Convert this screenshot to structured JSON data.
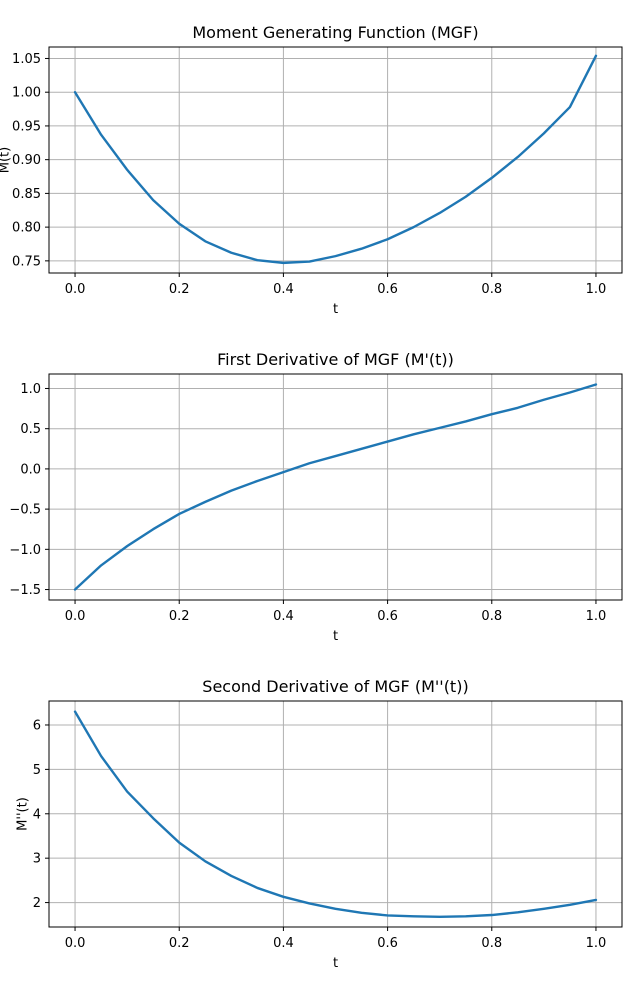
{
  "chart_data": [
    {
      "type": "line",
      "title": "Moment Generating Function (MGF)",
      "xlabel": "t",
      "ylabel": "M(t)",
      "xlim": [
        -0.05,
        1.05
      ],
      "ylim": [
        0.732,
        1.067
      ],
      "xticks": [
        0.0,
        0.2,
        0.4,
        0.6,
        0.8,
        1.0
      ],
      "xtick_labels": [
        "0.0",
        "0.2",
        "0.4",
        "0.6",
        "0.8",
        "1.0"
      ],
      "yticks": [
        0.75,
        0.8,
        0.85,
        0.9,
        0.95,
        1.0,
        1.05
      ],
      "ytick_labels": [
        "0.75",
        "0.80",
        "0.85",
        "0.90",
        "0.95",
        "1.00",
        "1.05"
      ],
      "grid": true,
      "color": "#1f77b4",
      "x": [
        0.0,
        0.05,
        0.1,
        0.15,
        0.2,
        0.25,
        0.3,
        0.35,
        0.4,
        0.45,
        0.5,
        0.55,
        0.6,
        0.65,
        0.7,
        0.75,
        0.8,
        0.85,
        0.9,
        0.95,
        1.0
      ],
      "y": [
        1.0,
        0.937,
        0.885,
        0.84,
        0.805,
        0.779,
        0.762,
        0.751,
        0.747,
        0.749,
        0.757,
        0.768,
        0.782,
        0.8,
        0.821,
        0.845,
        0.873,
        0.904,
        0.939,
        0.978,
        1.054
      ]
    },
    {
      "type": "line",
      "title": "First Derivative of MGF (M'(t))",
      "xlabel": "t",
      "ylabel": "",
      "xlim": [
        -0.05,
        1.05
      ],
      "ylim": [
        -1.63,
        1.18
      ],
      "xticks": [
        0.0,
        0.2,
        0.4,
        0.6,
        0.8,
        1.0
      ],
      "xtick_labels": [
        "0.0",
        "0.2",
        "0.4",
        "0.6",
        "0.8",
        "1.0"
      ],
      "yticks": [
        -1.5,
        -1.0,
        -0.5,
        0.0,
        0.5,
        1.0
      ],
      "ytick_labels": [
        "−1.5",
        "−1.0",
        "−0.5",
        "0.0",
        "0.5",
        "1.0"
      ],
      "grid": true,
      "color": "#1f77b4",
      "x": [
        0.0,
        0.05,
        0.1,
        0.15,
        0.2,
        0.25,
        0.3,
        0.35,
        0.4,
        0.45,
        0.5,
        0.55,
        0.6,
        0.65,
        0.7,
        0.75,
        0.8,
        0.85,
        0.9,
        0.95,
        1.0
      ],
      "y": [
        -1.5,
        -1.2,
        -0.96,
        -0.75,
        -0.56,
        -0.41,
        -0.27,
        -0.15,
        -0.04,
        0.07,
        0.16,
        0.25,
        0.34,
        0.43,
        0.51,
        0.59,
        0.68,
        0.76,
        0.86,
        0.95,
        1.05
      ]
    },
    {
      "type": "line",
      "title": "Second Derivative of MGF (M''(t))",
      "xlabel": "t",
      "ylabel": "M''(t)",
      "xlim": [
        -0.05,
        1.05
      ],
      "ylim": [
        1.45,
        6.54
      ],
      "xticks": [
        0.0,
        0.2,
        0.4,
        0.6,
        0.8,
        1.0
      ],
      "xtick_labels": [
        "0.0",
        "0.2",
        "0.4",
        "0.6",
        "0.8",
        "1.0"
      ],
      "yticks": [
        2,
        3,
        4,
        5,
        6
      ],
      "ytick_labels": [
        "2",
        "3",
        "4",
        "5",
        "6"
      ],
      "grid": true,
      "color": "#1f77b4",
      "x": [
        0.0,
        0.05,
        0.1,
        0.15,
        0.2,
        0.25,
        0.3,
        0.35,
        0.4,
        0.45,
        0.5,
        0.55,
        0.6,
        0.65,
        0.7,
        0.75,
        0.8,
        0.85,
        0.9,
        0.95,
        1.0
      ],
      "y": [
        6.3,
        5.3,
        4.5,
        3.9,
        3.35,
        2.93,
        2.6,
        2.33,
        2.13,
        1.98,
        1.86,
        1.77,
        1.71,
        1.69,
        1.68,
        1.69,
        1.72,
        1.78,
        1.86,
        1.95,
        2.06
      ]
    }
  ]
}
